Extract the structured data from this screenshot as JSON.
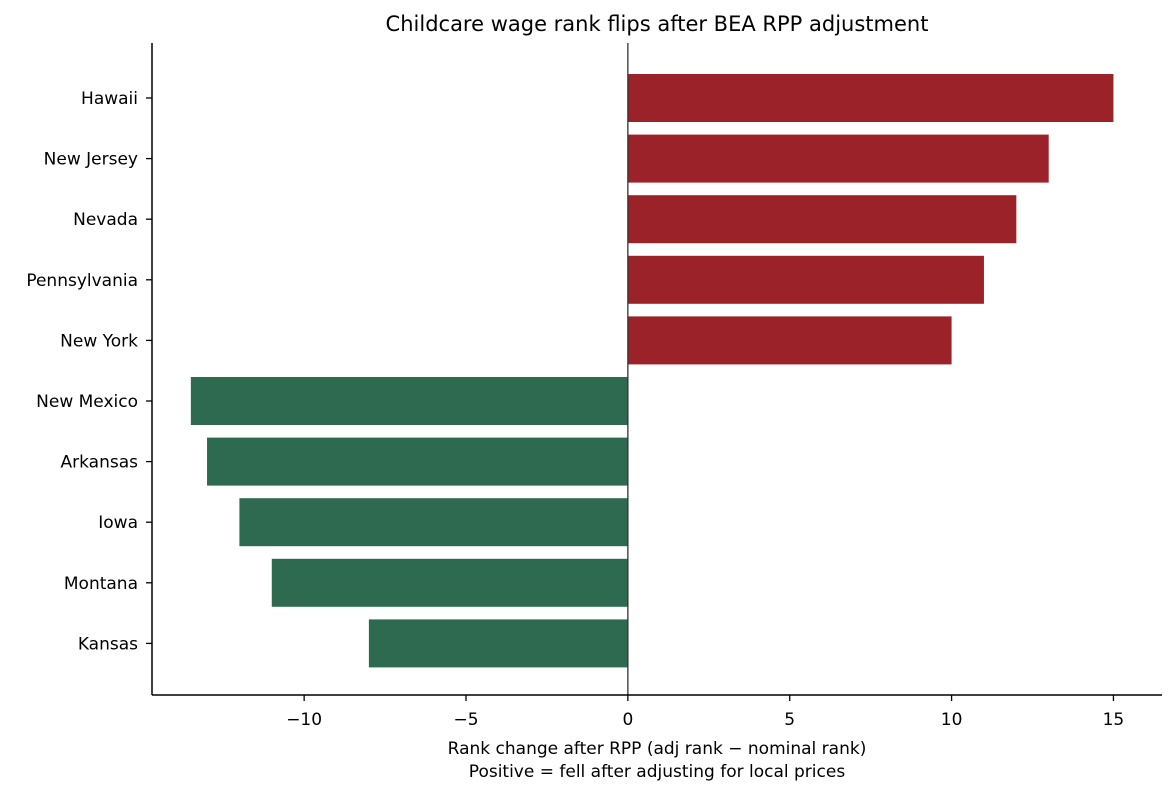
{
  "chart_data": {
    "type": "bar",
    "orientation": "horizontal",
    "title": "Childcare wage rank flips after BEA RPP adjustment",
    "xlabel": "Rank change after RPP (adj rank − nominal rank)",
    "xlabel_line2": "Positive = fell after adjusting for local prices",
    "ylabel": "",
    "categories": [
      "Hawaii",
      "New Jersey",
      "Nevada",
      "Pennsylvania",
      "New York",
      "New Mexico",
      "Arkansas",
      "Iowa",
      "Montana",
      "Kansas"
    ],
    "values": [
      15,
      13,
      12,
      11,
      10,
      -13.5,
      -13,
      -12,
      -11,
      -8
    ],
    "xlim": [
      -14.7,
      16.5
    ],
    "xticks": [
      -10,
      -5,
      0,
      5,
      10,
      15
    ],
    "xtick_labels": [
      "−10",
      "−5",
      "0",
      "5",
      "10",
      "15"
    ],
    "zero_line": true,
    "grid": false,
    "legend": "none",
    "colors": {
      "positive": "#9c2229",
      "negative": "#2e6a50",
      "axis": "#000000",
      "zero_line": "#333333"
    }
  }
}
